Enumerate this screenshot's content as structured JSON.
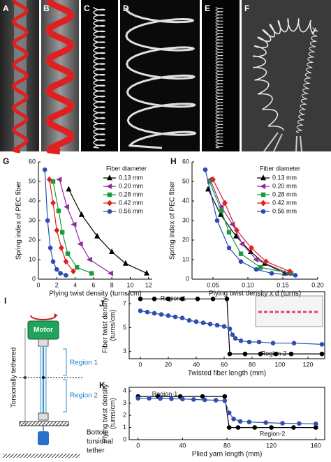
{
  "photos": {
    "labels": [
      "A",
      "B",
      "C",
      "D",
      "E",
      "F"
    ]
  },
  "diagram": {
    "label": "I",
    "motor": "Motor",
    "side_label": "Torsionally tethered",
    "regions": [
      "Region 1",
      "Region 2"
    ],
    "bottom_label": [
      "Bottom",
      "torsional",
      "tether"
    ]
  },
  "chart_data": [
    {
      "type": "line",
      "label": "G",
      "xlabel": "Plying twist density (turns/cm)",
      "ylabel": "Spring index of PEC fiber",
      "xlim": [
        0,
        12.4
      ],
      "xticks": [
        0,
        2,
        4,
        6,
        8,
        10,
        12
      ],
      "ylim": [
        0,
        60
      ],
      "yticks": [
        0,
        10,
        20,
        30,
        40,
        50,
        60
      ],
      "legend_title": "Fiber diameter",
      "legend": "upper right",
      "series": [
        {
          "name": "0.13 mm",
          "color": "#000000",
          "marker": "triangle-up",
          "x": [
            3.3,
            4.7,
            6.4,
            8,
            9.5,
            11.8
          ],
          "values": [
            46,
            33,
            22,
            14,
            8,
            3
          ]
        },
        {
          "name": "0.20 mm",
          "color": "#8e2c9a",
          "marker": "triangle-left",
          "x": [
            2.3,
            3.1,
            3.9,
            4.6,
            5.6,
            7.9
          ],
          "values": [
            51,
            37,
            28,
            18,
            10,
            3
          ]
        },
        {
          "name": "0.28 mm",
          "color": "#1a9a3a",
          "marker": "square",
          "x": [
            1.6,
            2.2,
            2.6,
            3.2,
            4.2,
            5.8
          ],
          "values": [
            50,
            35,
            24,
            13,
            6,
            3
          ]
        },
        {
          "name": "0.42 mm",
          "color": "#e0201b",
          "marker": "diamond",
          "x": [
            1.2,
            1.6,
            2,
            2.5,
            3,
            3.8
          ],
          "values": [
            51,
            39,
            25,
            16,
            9,
            4
          ]
        },
        {
          "name": "0.56 mm",
          "color": "#2b4bb5",
          "marker": "circle",
          "x": [
            0.7,
            1,
            1.3,
            1.6,
            2,
            2.4,
            3
          ],
          "values": [
            56,
            30,
            16,
            9,
            5,
            3,
            2
          ]
        }
      ]
    },
    {
      "type": "line",
      "label": "H",
      "xlabel": "Plying twist density x d (turns)",
      "ylabel": "Spring index of PEC fiber",
      "xlim": [
        0.02,
        0.2
      ],
      "xticks": [
        0.05,
        {
          "value": 0.1,
          "label": "0.10"
        },
        0.15,
        {
          "value": 0.2,
          "label": "0.20"
        }
      ],
      "ylim": [
        0,
        60
      ],
      "yticks": [
        0,
        10,
        20,
        30,
        40,
        50,
        60
      ],
      "legend_title": "Fiber diameter",
      "legend": "upper right",
      "series": [
        {
          "name": "0.13 mm",
          "color": "#000000",
          "marker": "triangle-up",
          "x": [
            0.043,
            0.061,
            0.083,
            0.104,
            0.124,
            0.153
          ],
          "values": [
            46,
            33,
            22,
            14,
            8,
            3
          ]
        },
        {
          "name": "0.20 mm",
          "color": "#8e2c9a",
          "marker": "triangle-left",
          "x": [
            0.046,
            0.062,
            0.078,
            0.092,
            0.112,
            0.158
          ],
          "values": [
            51,
            37,
            28,
            18,
            10,
            3
          ]
        },
        {
          "name": "0.28 mm",
          "color": "#1a9a3a",
          "marker": "square",
          "x": [
            0.045,
            0.062,
            0.073,
            0.09,
            0.118,
            0.162
          ],
          "values": [
            50,
            35,
            24,
            13,
            6,
            3
          ]
        },
        {
          "name": "0.42 mm",
          "color": "#e0201b",
          "marker": "diamond",
          "x": [
            0.05,
            0.067,
            0.084,
            0.105,
            0.126,
            0.16
          ],
          "values": [
            51,
            39,
            25,
            16,
            9,
            4
          ]
        },
        {
          "name": "0.56 mm",
          "color": "#2b4bb5",
          "marker": "circle",
          "x": [
            0.039,
            0.056,
            0.073,
            0.09,
            0.112,
            0.134,
            0.168
          ],
          "values": [
            56,
            30,
            16,
            9,
            5,
            3,
            2
          ]
        }
      ]
    },
    {
      "type": "line",
      "label": "J",
      "xlabel": "Twisted fiber length (mm)",
      "ylabel": [
        "Fiber twist density",
        "(turns/cm)"
      ],
      "xlim": [
        -8,
        132
      ],
      "xticks": [
        0,
        20,
        40,
        60,
        80,
        100,
        120
      ],
      "ylim": [
        2.4,
        8
      ],
      "yticks": [
        3,
        5,
        7
      ],
      "annotations": [
        "Region-1",
        "Region-2"
      ],
      "series": [
        {
          "color": "#000000",
          "marker": "circle",
          "x": [
            0,
            10,
            20,
            30,
            41,
            52,
            62,
            64,
            75,
            86,
            97,
            108,
            130
          ],
          "values": [
            7.4,
            7.4,
            7.4,
            7.4,
            7.4,
            7.4,
            7.4,
            2.8,
            2.8,
            2.8,
            2.8,
            2.8,
            2.8
          ]
        },
        {
          "color": "#2f4fb0",
          "marker": "circle",
          "x": [
            0,
            5,
            10,
            15,
            20,
            25,
            30,
            35,
            40,
            45,
            50,
            55,
            60,
            64,
            66,
            68,
            72,
            78,
            85,
            95,
            110,
            130
          ],
          "values": [
            6.4,
            6.3,
            6.2,
            6.1,
            6.0,
            5.9,
            5.8,
            5.6,
            5.5,
            5.4,
            5.3,
            5.2,
            5.1,
            4.9,
            4.4,
            4.1,
            3.9,
            3.8,
            3.8,
            3.7,
            3.7,
            3.6
          ]
        }
      ]
    },
    {
      "type": "line",
      "label": "K",
      "xlabel": "Plied yarn length (mm)",
      "ylabel": [
        "Plying twist density",
        "(turns/cm)"
      ],
      "xlim": [
        -8,
        168
      ],
      "xticks": [
        0,
        40,
        80,
        120,
        160
      ],
      "ylim": [
        0,
        4.3
      ],
      "yticks": [
        0,
        1,
        2,
        3,
        4
      ],
      "annotations": [
        "Region-1",
        "Region-2"
      ],
      "series": [
        {
          "color": "#000000",
          "marker": "circle",
          "x": [
            0,
            18,
            38,
            58,
            78,
            82,
            90,
            105,
            120,
            140,
            160
          ],
          "values": [
            3.55,
            3.55,
            3.55,
            3.55,
            3.55,
            1.0,
            1.0,
            1.0,
            1.0,
            1.0,
            1.0
          ]
        },
        {
          "color": "#2f4fb0",
          "marker": "circle",
          "x": [
            0,
            10,
            20,
            30,
            40,
            50,
            60,
            70,
            78,
            82,
            86,
            92,
            100,
            115,
            130,
            145,
            160
          ],
          "values": [
            3.4,
            3.4,
            3.38,
            3.36,
            3.34,
            3.3,
            3.27,
            3.24,
            3.2,
            2.2,
            1.7,
            1.5,
            1.45,
            1.4,
            1.35,
            1.33,
            1.3
          ]
        }
      ]
    }
  ]
}
